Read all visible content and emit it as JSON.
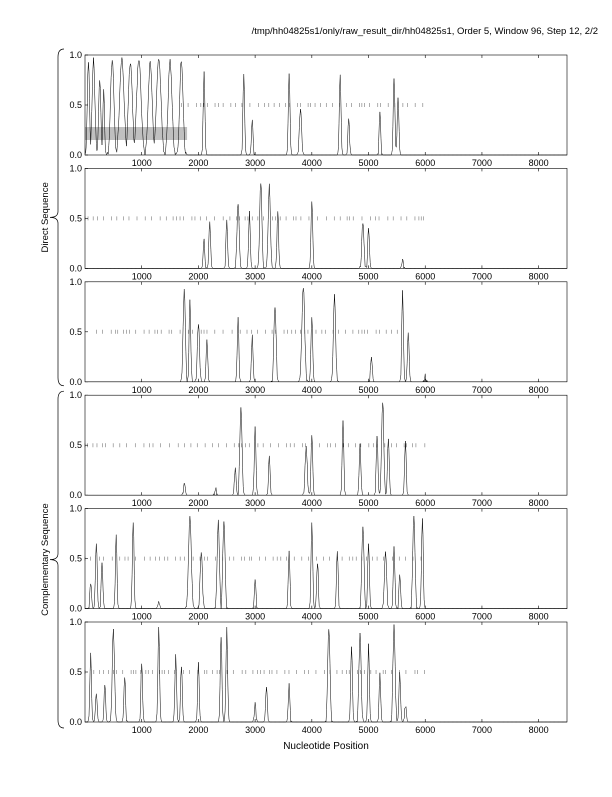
{
  "page_title": "/tmp/hh04825s1/only/raw_result_dir/hh04825s1, Order 5, Window 96, Step 12, 2/2",
  "group_labels": {
    "direct": "Direct Sequence",
    "complementary": "Complementary Sequence"
  },
  "xlabel": "Nucleotide Position",
  "chart_data": {
    "type": "line",
    "xlim": [
      0,
      8500
    ],
    "ylim": [
      0,
      1
    ],
    "x_ticks": [
      1000,
      2000,
      3000,
      4000,
      5000,
      6000,
      7000,
      8000
    ],
    "x_tick_labels": [
      "1000",
      "2000",
      "3000",
      "4000",
      "5000",
      "6000",
      "7000",
      "8000"
    ],
    "y_ticks": [
      0,
      0.5,
      1
    ],
    "y_tick_labels": [
      "0.0",
      "0.5",
      "1.0"
    ],
    "grid": false,
    "line_color": "#000000",
    "highlight_color": "#c0c0c0",
    "panels": [
      {
        "group": "direct",
        "highlight_x": [
          0,
          1800
        ],
        "highlight_y": [
          0.15,
          0.28
        ],
        "gene_marks_range": [
          1700,
          6000
        ],
        "peaks": [
          [
            60,
            0.95,
            20
          ],
          [
            150,
            0.98,
            25
          ],
          [
            260,
            0.8,
            20
          ],
          [
            330,
            0.7,
            15
          ],
          [
            480,
            0.98,
            30
          ],
          [
            650,
            0.98,
            40
          ],
          [
            800,
            0.96,
            35
          ],
          [
            950,
            0.98,
            40
          ],
          [
            1150,
            0.96,
            35
          ],
          [
            1300,
            0.98,
            40
          ],
          [
            1500,
            0.96,
            35
          ],
          [
            1700,
            0.97,
            30
          ],
          [
            2100,
            0.85,
            15
          ],
          [
            2800,
            0.85,
            15
          ],
          [
            2950,
            0.4,
            15
          ],
          [
            3600,
            0.85,
            15
          ],
          [
            3800,
            0.5,
            20
          ],
          [
            4500,
            0.85,
            15
          ],
          [
            4650,
            0.4,
            15
          ],
          [
            5200,
            0.45,
            15
          ],
          [
            5450,
            0.82,
            15
          ],
          [
            5520,
            0.6,
            15
          ]
        ]
      },
      {
        "group": "direct",
        "gene_marks_range": [
          0,
          6000
        ],
        "peaks": [
          [
            2100,
            0.3,
            15
          ],
          [
            2200,
            0.5,
            15
          ],
          [
            2500,
            0.5,
            15
          ],
          [
            2700,
            0.7,
            20
          ],
          [
            2900,
            0.6,
            15
          ],
          [
            3100,
            0.9,
            20
          ],
          [
            3250,
            0.85,
            20
          ],
          [
            3400,
            0.6,
            15
          ],
          [
            4000,
            0.7,
            15
          ],
          [
            4900,
            0.5,
            20
          ],
          [
            5000,
            0.45,
            15
          ],
          [
            5600,
            0.1,
            15
          ]
        ]
      },
      {
        "group": "direct",
        "gene_marks_range": [
          200,
          5600
        ],
        "peaks": [
          [
            1750,
            0.95,
            20
          ],
          [
            1850,
            0.85,
            15
          ],
          [
            2000,
            0.6,
            20
          ],
          [
            2150,
            0.45,
            15
          ],
          [
            2700,
            0.65,
            15
          ],
          [
            2950,
            0.5,
            15
          ],
          [
            3350,
            0.8,
            20
          ],
          [
            3850,
            0.98,
            25
          ],
          [
            4000,
            0.7,
            15
          ],
          [
            4400,
            0.9,
            20
          ],
          [
            5050,
            0.3,
            15
          ],
          [
            5600,
            0.95,
            15
          ],
          [
            5700,
            0.5,
            15
          ],
          [
            6000,
            0.1,
            15
          ]
        ]
      },
      {
        "group": "complementary",
        "gene_marks_range": [
          0,
          6000
        ],
        "peaks": [
          [
            1750,
            0.18,
            15
          ],
          [
            2300,
            0.1,
            15
          ],
          [
            2650,
            0.3,
            15
          ],
          [
            2750,
            0.92,
            20
          ],
          [
            3000,
            0.7,
            15
          ],
          [
            3250,
            0.4,
            15
          ],
          [
            3900,
            0.5,
            20
          ],
          [
            4000,
            0.65,
            15
          ],
          [
            4550,
            0.75,
            15
          ],
          [
            4850,
            0.55,
            15
          ],
          [
            5150,
            0.65,
            15
          ],
          [
            5250,
            0.98,
            20
          ],
          [
            5350,
            0.6,
            15
          ],
          [
            5650,
            0.55,
            15
          ]
        ]
      },
      {
        "group": "complementary",
        "gene_marks_range": [
          0,
          6000
        ],
        "peaks": [
          [
            100,
            0.3,
            15
          ],
          [
            200,
            0.7,
            15
          ],
          [
            300,
            0.5,
            15
          ],
          [
            550,
            0.75,
            15
          ],
          [
            850,
            0.9,
            15
          ],
          [
            1300,
            0.1,
            15
          ],
          [
            1850,
            0.95,
            25
          ],
          [
            2050,
            0.6,
            20
          ],
          [
            2350,
            0.9,
            20
          ],
          [
            2450,
            0.92,
            20
          ],
          [
            3000,
            0.3,
            15
          ],
          [
            3600,
            0.6,
            15
          ],
          [
            4000,
            0.9,
            15
          ],
          [
            4100,
            0.5,
            15
          ],
          [
            4450,
            0.6,
            15
          ],
          [
            4900,
            0.85,
            20
          ],
          [
            5000,
            0.7,
            15
          ],
          [
            5300,
            0.6,
            20
          ],
          [
            5450,
            0.65,
            15
          ],
          [
            5550,
            0.35,
            15
          ],
          [
            5800,
            0.97,
            20
          ],
          [
            5950,
            0.95,
            15
          ]
        ]
      },
      {
        "group": "complementary",
        "gene_marks_range": [
          0,
          6000
        ],
        "peaks": [
          [
            100,
            0.7,
            15
          ],
          [
            200,
            0.3,
            15
          ],
          [
            350,
            0.4,
            15
          ],
          [
            500,
            0.95,
            20
          ],
          [
            700,
            0.5,
            15
          ],
          [
            1000,
            0.6,
            15
          ],
          [
            1300,
            0.95,
            15
          ],
          [
            1600,
            0.7,
            15
          ],
          [
            1700,
            0.6,
            15
          ],
          [
            2000,
            0.6,
            15
          ],
          [
            2400,
            0.9,
            15
          ],
          [
            2500,
            0.95,
            15
          ],
          [
            3000,
            0.2,
            15
          ],
          [
            3200,
            0.4,
            15
          ],
          [
            3600,
            0.4,
            15
          ],
          [
            4300,
            0.98,
            20
          ],
          [
            4700,
            0.8,
            15
          ],
          [
            4850,
            0.9,
            20
          ],
          [
            5000,
            0.8,
            15
          ],
          [
            5200,
            0.5,
            15
          ],
          [
            5450,
            0.98,
            20
          ],
          [
            5550,
            0.5,
            15
          ],
          [
            5650,
            0.2,
            15
          ]
        ]
      }
    ]
  }
}
